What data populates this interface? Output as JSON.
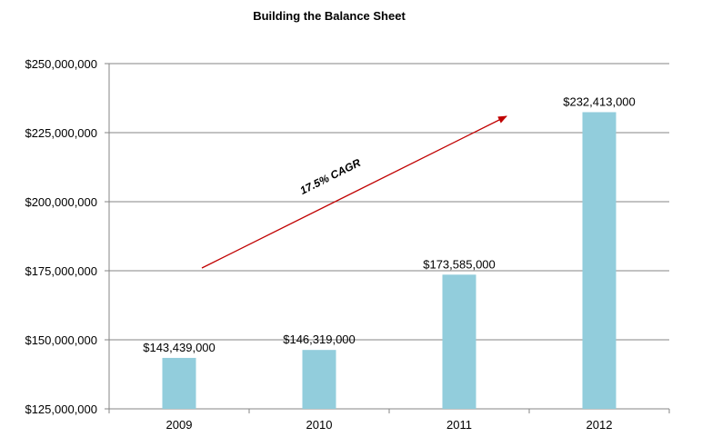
{
  "chart_data": {
    "type": "bar",
    "title": "Building the Balance Sheet",
    "categories": [
      "2009",
      "2010",
      "2011",
      "2012"
    ],
    "values": [
      143439000,
      146319000,
      173585000,
      232413000
    ],
    "data_labels": [
      "$143,439,000",
      "$146,319,000",
      "$173,585,000",
      "$232,413,000"
    ],
    "ylim": [
      125000000,
      250000000
    ],
    "yticks": [
      125000000,
      150000000,
      175000000,
      200000000,
      225000000,
      250000000
    ],
    "ytick_labels": [
      "$125,000,000",
      "$150,000,000",
      "$175,000,000",
      "$200,000,000",
      "$225,000,000",
      "$250,000,000"
    ],
    "xlabel": "",
    "ylabel": "",
    "grid": true,
    "legend": "none",
    "bar_color": "#92cddc",
    "grid_color": "#868686",
    "annotation": {
      "text": "17.5% CAGR",
      "color": "#c00000"
    }
  }
}
